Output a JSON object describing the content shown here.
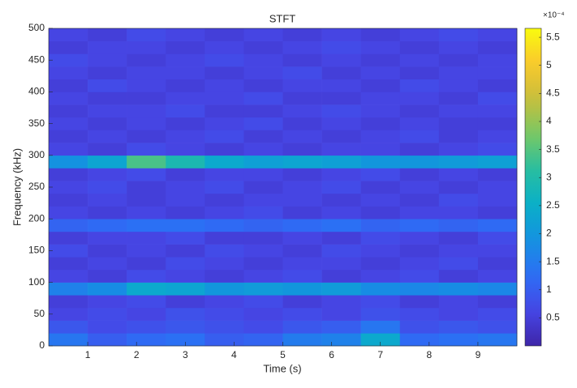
{
  "chart_data": {
    "type": "heatmap",
    "title": "STFT",
    "x_label": "Time (s)",
    "y_label": "Frequency (kHz)",
    "colormap": "parula",
    "xlim": [
      0.2,
      9.8
    ],
    "ylim": [
      0,
      500
    ],
    "xticks": [
      1,
      2,
      3,
      4,
      5,
      6,
      7,
      8,
      9
    ],
    "yticks": [
      0,
      50,
      100,
      150,
      200,
      250,
      300,
      350,
      400,
      450,
      500
    ],
    "xbins": [
      0.2,
      1.0,
      1.8,
      2.6,
      3.4,
      4.2,
      5.0,
      5.8,
      6.6,
      7.4,
      8.2,
      9.0,
      9.8
    ],
    "ybins": [
      0,
      20,
      40,
      60,
      80,
      100,
      120,
      140,
      160,
      180,
      200,
      220,
      240,
      260,
      280,
      300,
      320,
      340,
      360,
      380,
      400,
      420,
      440,
      460,
      480,
      500
    ],
    "z": [
      [
        1.4,
        1.0,
        1.2,
        1.3,
        1.0,
        1.1,
        1.5,
        1.6,
        2.4,
        1.2,
        1.3,
        1.4
      ],
      [
        0.9,
        0.7,
        0.8,
        0.9,
        0.8,
        0.7,
        0.9,
        1.0,
        1.4,
        0.8,
        0.9,
        0.8
      ],
      [
        0.6,
        0.7,
        0.6,
        0.8,
        0.7,
        0.6,
        0.7,
        0.6,
        0.8,
        0.7,
        0.6,
        0.7
      ],
      [
        0.5,
        0.6,
        0.7,
        0.5,
        0.6,
        0.7,
        0.5,
        0.6,
        0.7,
        0.5,
        0.6,
        0.5
      ],
      [
        1.6,
        1.8,
        2.4,
        2.3,
        2.0,
        2.1,
        2.0,
        2.1,
        1.8,
        1.7,
        1.8,
        1.7
      ],
      [
        0.6,
        0.5,
        0.7,
        0.6,
        0.5,
        0.6,
        0.7,
        0.5,
        0.6,
        0.7,
        0.5,
        0.6
      ],
      [
        0.5,
        0.6,
        0.5,
        0.7,
        0.6,
        0.5,
        0.6,
        0.6,
        0.5,
        0.6,
        0.7,
        0.5
      ],
      [
        0.7,
        0.5,
        0.6,
        0.5,
        0.7,
        0.6,
        0.5,
        0.7,
        0.6,
        0.5,
        0.6,
        0.6
      ],
      [
        0.5,
        0.6,
        0.6,
        0.7,
        0.5,
        0.5,
        0.6,
        0.5,
        0.7,
        0.6,
        0.5,
        0.7
      ],
      [
        1.1,
        1.2,
        1.3,
        1.3,
        1.2,
        1.1,
        1.2,
        1.3,
        1.1,
        1.2,
        1.1,
        1.2
      ],
      [
        0.6,
        0.5,
        0.6,
        0.5,
        0.6,
        0.7,
        0.5,
        0.6,
        0.5,
        0.6,
        0.6,
        0.5
      ],
      [
        0.5,
        0.6,
        0.5,
        0.6,
        0.5,
        0.6,
        0.6,
        0.5,
        0.6,
        0.5,
        0.7,
        0.6
      ],
      [
        0.6,
        0.7,
        0.5,
        0.6,
        0.7,
        0.5,
        0.6,
        0.7,
        0.5,
        0.6,
        0.5,
        0.6
      ],
      [
        0.5,
        0.6,
        0.7,
        0.5,
        0.6,
        0.6,
        0.5,
        0.6,
        0.7,
        0.5,
        0.6,
        0.5
      ],
      [
        1.9,
        2.3,
        3.4,
        2.9,
        2.4,
        2.2,
        2.3,
        2.2,
        2.0,
        2.0,
        2.1,
        2.2
      ],
      [
        0.6,
        0.5,
        0.7,
        0.6,
        0.5,
        0.6,
        0.5,
        0.6,
        0.6,
        0.5,
        0.6,
        0.7
      ],
      [
        0.5,
        0.6,
        0.5,
        0.6,
        0.7,
        0.5,
        0.6,
        0.5,
        0.6,
        0.7,
        0.5,
        0.6
      ],
      [
        0.6,
        0.5,
        0.6,
        0.5,
        0.6,
        0.7,
        0.5,
        0.6,
        0.5,
        0.6,
        0.5,
        0.5
      ],
      [
        0.5,
        0.6,
        0.6,
        0.7,
        0.5,
        0.5,
        0.6,
        0.7,
        0.6,
        0.5,
        0.6,
        0.6
      ],
      [
        0.6,
        0.5,
        0.5,
        0.6,
        0.6,
        0.7,
        0.5,
        0.5,
        0.6,
        0.6,
        0.5,
        0.7
      ],
      [
        0.5,
        0.7,
        0.6,
        0.5,
        0.6,
        0.5,
        0.6,
        0.6,
        0.5,
        0.7,
        0.6,
        0.5
      ],
      [
        0.6,
        0.5,
        0.6,
        0.6,
        0.5,
        0.6,
        0.7,
        0.5,
        0.6,
        0.5,
        0.6,
        0.6
      ],
      [
        0.7,
        0.6,
        0.5,
        0.6,
        0.7,
        0.6,
        0.5,
        0.6,
        0.5,
        0.6,
        0.5,
        0.6
      ],
      [
        0.5,
        0.6,
        0.6,
        0.5,
        0.6,
        0.5,
        0.6,
        0.7,
        0.6,
        0.5,
        0.6,
        0.5
      ],
      [
        0.6,
        0.5,
        0.7,
        0.6,
        0.5,
        0.6,
        0.5,
        0.6,
        0.5,
        0.6,
        0.7,
        0.6
      ]
    ],
    "clim": [
      0,
      5.66
    ],
    "colorbar_ticks": [
      0.5,
      1,
      1.5,
      2,
      2.5,
      3,
      3.5,
      4,
      4.5,
      5,
      5.5
    ],
    "colorbar_exponent": "×10⁻⁴"
  }
}
